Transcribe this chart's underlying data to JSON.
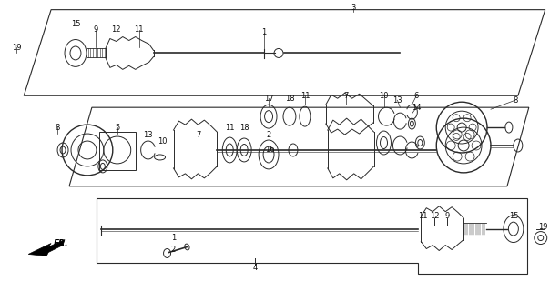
{
  "bg_color": "#ffffff",
  "line_color": "#2a2a2a",
  "text_color": "#111111",
  "fig_width": 6.15,
  "fig_height": 3.2,
  "dpi": 100
}
